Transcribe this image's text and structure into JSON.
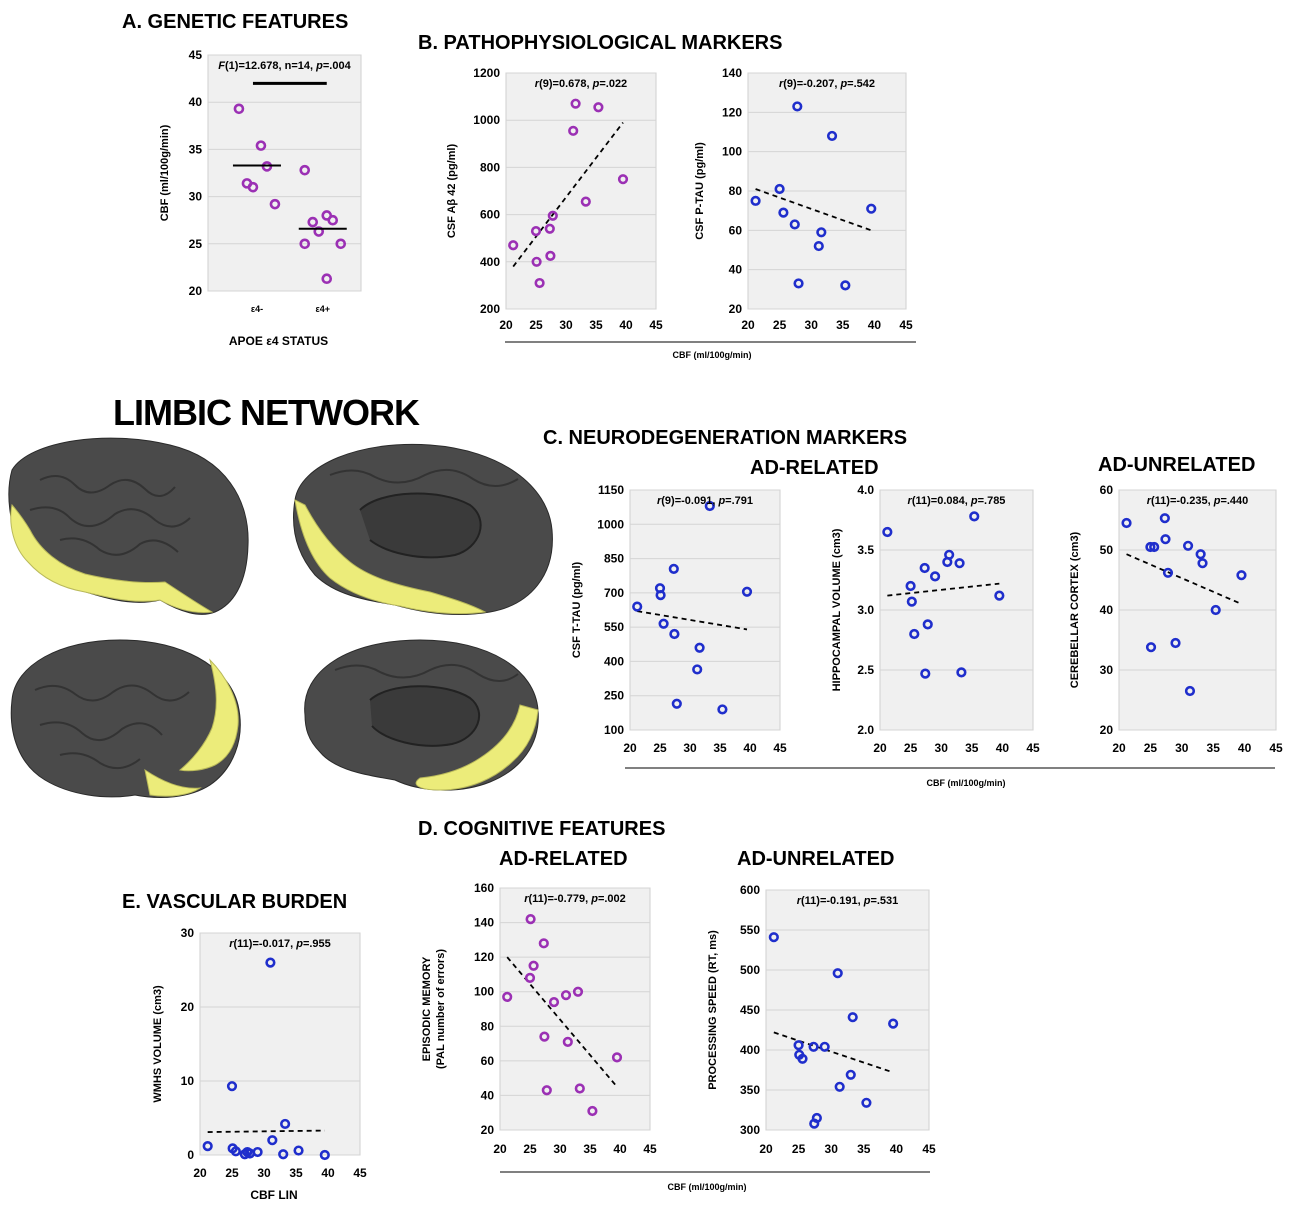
{
  "sections": {
    "genetic": "A. GENETIC  FEATURES",
    "patho": "B. PATHOPHYSIOLOGICAL  MARKERS",
    "neuro": "C. NEURODEGENERATION  MARKERS",
    "neuro_related": "AD-RELATED",
    "neuro_unrelated": "AD-UNRELATED",
    "cognitive": "D. COGNITIVE  FEATURES",
    "cog_related": "AD-RELATED",
    "cog_unrelated": "AD-UNRELATED",
    "vascular": "E. VASCULAR  BURDEN",
    "limbic": "LIMBIC NETWORK"
  },
  "shared_xlabels": {
    "patho": "CBF (ml/100g/min)",
    "neuro": "CBF (ml/100g/min)",
    "cog": "CBF (ml/100g/min)"
  },
  "colors": {
    "purple": "#9b30b4",
    "blue": "#1f2ecc",
    "plot_bg": "#f0f0f0",
    "grid": "#d4d4d4",
    "brain_gray": "#4a4a4a",
    "brain_yellow": "#ecec7a"
  },
  "brain_icons": [
    "brain-lateral-left-icon",
    "brain-medial-right-icon",
    "brain-lateral-right-icon",
    "brain-medial-left-icon"
  ],
  "chart_data": [
    {
      "id": "A",
      "type": "strip",
      "stat": "F(1)=12.678, n=14, p=.004",
      "ylabel": "CBF (ml/100g/min)",
      "xlabel": "APOE ε4 STATUS",
      "categories": [
        "ε4-",
        "ε4+"
      ],
      "ylim": [
        20,
        45
      ],
      "yticks": [
        20,
        25,
        30,
        35,
        40,
        45
      ],
      "color": "purple",
      "groups": [
        {
          "values": [
            39.3,
            35.4,
            33.2,
            31.4,
            31.0,
            29.2
          ],
          "mean": 33.3
        },
        {
          "values": [
            32.8,
            28.0,
            27.5,
            27.3,
            26.3,
            25.0,
            25.0,
            21.3
          ],
          "mean": 26.6
        }
      ],
      "significance_bar": true
    },
    {
      "id": "B1",
      "type": "scatter",
      "stat": "r(9)=0.678, p=.022",
      "ylabel": "CSF Aβ 42 (pg/ml)",
      "xlim": [
        20,
        45
      ],
      "xticks": [
        20,
        25,
        30,
        35,
        40,
        45
      ],
      "ylim": [
        200,
        1200
      ],
      "yticks": [
        200,
        400,
        600,
        800,
        1000,
        1200
      ],
      "color": "purple",
      "points": [
        [
          21.2,
          470
        ],
        [
          25.0,
          530
        ],
        [
          25.1,
          400
        ],
        [
          25.6,
          310
        ],
        [
          27.3,
          540
        ],
        [
          27.4,
          425
        ],
        [
          27.8,
          595
        ],
        [
          31.2,
          955
        ],
        [
          31.6,
          1070
        ],
        [
          33.3,
          655
        ],
        [
          35.4,
          1055
        ],
        [
          39.5,
          750
        ]
      ],
      "trend": [
        [
          21.2,
          380
        ],
        [
          39.5,
          990
        ]
      ]
    },
    {
      "id": "B2",
      "type": "scatter",
      "stat": "r(9)=-0.207, p=.542",
      "ylabel": "CSF P-TAU (pg/ml)",
      "xlim": [
        20,
        45
      ],
      "xticks": [
        20,
        25,
        30,
        35,
        40,
        45
      ],
      "ylim": [
        20,
        140
      ],
      "yticks": [
        20,
        40,
        60,
        80,
        100,
        120,
        140
      ],
      "color": "blue",
      "points": [
        [
          21.2,
          75
        ],
        [
          25.0,
          81
        ],
        [
          25.6,
          69
        ],
        [
          27.4,
          63
        ],
        [
          27.8,
          123
        ],
        [
          28.0,
          33
        ],
        [
          31.2,
          52
        ],
        [
          31.6,
          59
        ],
        [
          33.3,
          108
        ],
        [
          35.4,
          32
        ],
        [
          39.5,
          71
        ]
      ],
      "trend": [
        [
          21.2,
          81
        ],
        [
          39.5,
          60
        ]
      ]
    },
    {
      "id": "C1",
      "type": "scatter",
      "stat": "r(9)=-0.091, p=.791",
      "ylabel": "CSF T-TAU (pg/ml)",
      "xlim": [
        20,
        45
      ],
      "xticks": [
        20,
        25,
        30,
        35,
        40,
        45
      ],
      "ylim": [
        100,
        1150
      ],
      "yticks": [
        100,
        250,
        400,
        550,
        700,
        850,
        1000,
        1150
      ],
      "color": "blue",
      "points": [
        [
          21.2,
          640
        ],
        [
          25.0,
          720
        ],
        [
          25.1,
          690
        ],
        [
          25.6,
          565
        ],
        [
          27.3,
          805
        ],
        [
          27.4,
          520
        ],
        [
          27.8,
          215
        ],
        [
          31.2,
          365
        ],
        [
          31.6,
          460
        ],
        [
          33.3,
          1080
        ],
        [
          35.4,
          190
        ],
        [
          39.5,
          705
        ]
      ],
      "trend": [
        [
          21.2,
          620
        ],
        [
          39.5,
          540
        ]
      ]
    },
    {
      "id": "C2",
      "type": "scatter",
      "stat": "r(11)=0.084, p=.785",
      "ylabel": "HIPPOCAMPAL VOLUME (cm3)",
      "xlim": [
        20,
        45
      ],
      "xticks": [
        20,
        25,
        30,
        35,
        40,
        45
      ],
      "ylim": [
        2.0,
        4.0
      ],
      "yticks": [
        "2.0",
        "2.5",
        "3.0",
        "3.5",
        "4.0"
      ],
      "color": "blue",
      "points": [
        [
          21.2,
          3.65
        ],
        [
          25.0,
          3.2
        ],
        [
          25.2,
          3.07
        ],
        [
          25.6,
          2.8
        ],
        [
          27.3,
          3.35
        ],
        [
          27.4,
          2.47
        ],
        [
          27.8,
          2.88
        ],
        [
          29.0,
          3.28
        ],
        [
          31.0,
          3.4
        ],
        [
          31.3,
          3.46
        ],
        [
          33.0,
          3.39
        ],
        [
          33.3,
          2.48
        ],
        [
          35.4,
          3.78
        ],
        [
          39.5,
          3.12
        ]
      ],
      "trend": [
        [
          21.2,
          3.12
        ],
        [
          39.5,
          3.22
        ]
      ]
    },
    {
      "id": "C3",
      "type": "scatter",
      "stat": "r(11)=-0.235, p=.440",
      "ylabel": "CEREBELLAR CORTEX (cm3)",
      "xlim": [
        20,
        45
      ],
      "xticks": [
        20,
        25,
        30,
        35,
        40,
        45
      ],
      "ylim": [
        20,
        60
      ],
      "yticks": [
        20,
        30,
        40,
        50,
        60
      ],
      "color": "blue",
      "points": [
        [
          21.2,
          54.5
        ],
        [
          25.0,
          50.5
        ],
        [
          25.1,
          33.8
        ],
        [
          25.6,
          50.5
        ],
        [
          27.3,
          55.3
        ],
        [
          27.4,
          51.8
        ],
        [
          27.8,
          46.2
        ],
        [
          29.0,
          34.5
        ],
        [
          31.0,
          50.7
        ],
        [
          31.3,
          26.5
        ],
        [
          33.0,
          49.3
        ],
        [
          33.3,
          47.8
        ],
        [
          35.4,
          40.0
        ],
        [
          39.5,
          45.8
        ]
      ],
      "trend": [
        [
          21.2,
          49.3
        ],
        [
          39.5,
          41.0
        ]
      ]
    },
    {
      "id": "D1",
      "type": "scatter",
      "stat": "r(11)=-0.779, p=.002",
      "ylabel": "EPISODIC MEMORY",
      "ylabel2": "(PAL number of errors)",
      "xlim": [
        20,
        45
      ],
      "xticks": [
        20,
        25,
        30,
        35,
        40,
        45
      ],
      "ylim": [
        20,
        160
      ],
      "yticks": [
        20,
        40,
        60,
        80,
        100,
        120,
        140,
        160
      ],
      "color": "purple",
      "points": [
        [
          21.2,
          97
        ],
        [
          25.0,
          108
        ],
        [
          25.1,
          142
        ],
        [
          25.6,
          115
        ],
        [
          27.3,
          128
        ],
        [
          27.4,
          74
        ],
        [
          27.8,
          43
        ],
        [
          29.0,
          94
        ],
        [
          31.0,
          98
        ],
        [
          31.3,
          71
        ],
        [
          33.0,
          100
        ],
        [
          33.3,
          44
        ],
        [
          35.4,
          31
        ],
        [
          39.5,
          62
        ]
      ],
      "trend": [
        [
          21.2,
          120
        ],
        [
          39.5,
          45
        ]
      ]
    },
    {
      "id": "D2",
      "type": "scatter",
      "stat": "r(11)=-0.191, p=.531",
      "ylabel": "PROCESSING SPEED (RT, ms)",
      "xlim": [
        20,
        45
      ],
      "xticks": [
        20,
        25,
        30,
        35,
        40,
        45
      ],
      "ylim": [
        300,
        600
      ],
      "yticks": [
        300,
        350,
        400,
        450,
        500,
        550,
        600
      ],
      "color": "blue",
      "points": [
        [
          21.2,
          541
        ],
        [
          25.0,
          406
        ],
        [
          25.1,
          394
        ],
        [
          25.6,
          389
        ],
        [
          27.3,
          404
        ],
        [
          27.4,
          308
        ],
        [
          27.8,
          315
        ],
        [
          29.0,
          404
        ],
        [
          31.0,
          496
        ],
        [
          31.3,
          354
        ],
        [
          33.0,
          369
        ],
        [
          33.3,
          441
        ],
        [
          35.4,
          334
        ],
        [
          39.5,
          433
        ]
      ],
      "trend": [
        [
          21.2,
          422
        ],
        [
          39.5,
          372
        ]
      ]
    },
    {
      "id": "E",
      "type": "scatter",
      "stat": "r(11)=-0.017, p=.955",
      "ylabel": "WMHS VOLUME (cm3)",
      "xlabel": "CBF LIN",
      "xlim": [
        20,
        45
      ],
      "xticks": [
        20,
        25,
        30,
        35,
        40,
        45
      ],
      "ylim": [
        0,
        30
      ],
      "yticks": [
        0,
        10,
        20,
        30
      ],
      "color": "blue",
      "points": [
        [
          21.2,
          1.2
        ],
        [
          25.0,
          9.3
        ],
        [
          25.1,
          0.9
        ],
        [
          25.6,
          0.5
        ],
        [
          27.0,
          0.1
        ],
        [
          27.4,
          0.4
        ],
        [
          27.8,
          0.2
        ],
        [
          29.0,
          0.4
        ],
        [
          31.0,
          26.0
        ],
        [
          31.3,
          2.0
        ],
        [
          33.0,
          0.1
        ],
        [
          33.3,
          4.2
        ],
        [
          35.4,
          0.6
        ],
        [
          39.5,
          0.0
        ]
      ],
      "trend": [
        [
          21.2,
          3.1
        ],
        [
          39.5,
          3.3
        ]
      ]
    }
  ]
}
